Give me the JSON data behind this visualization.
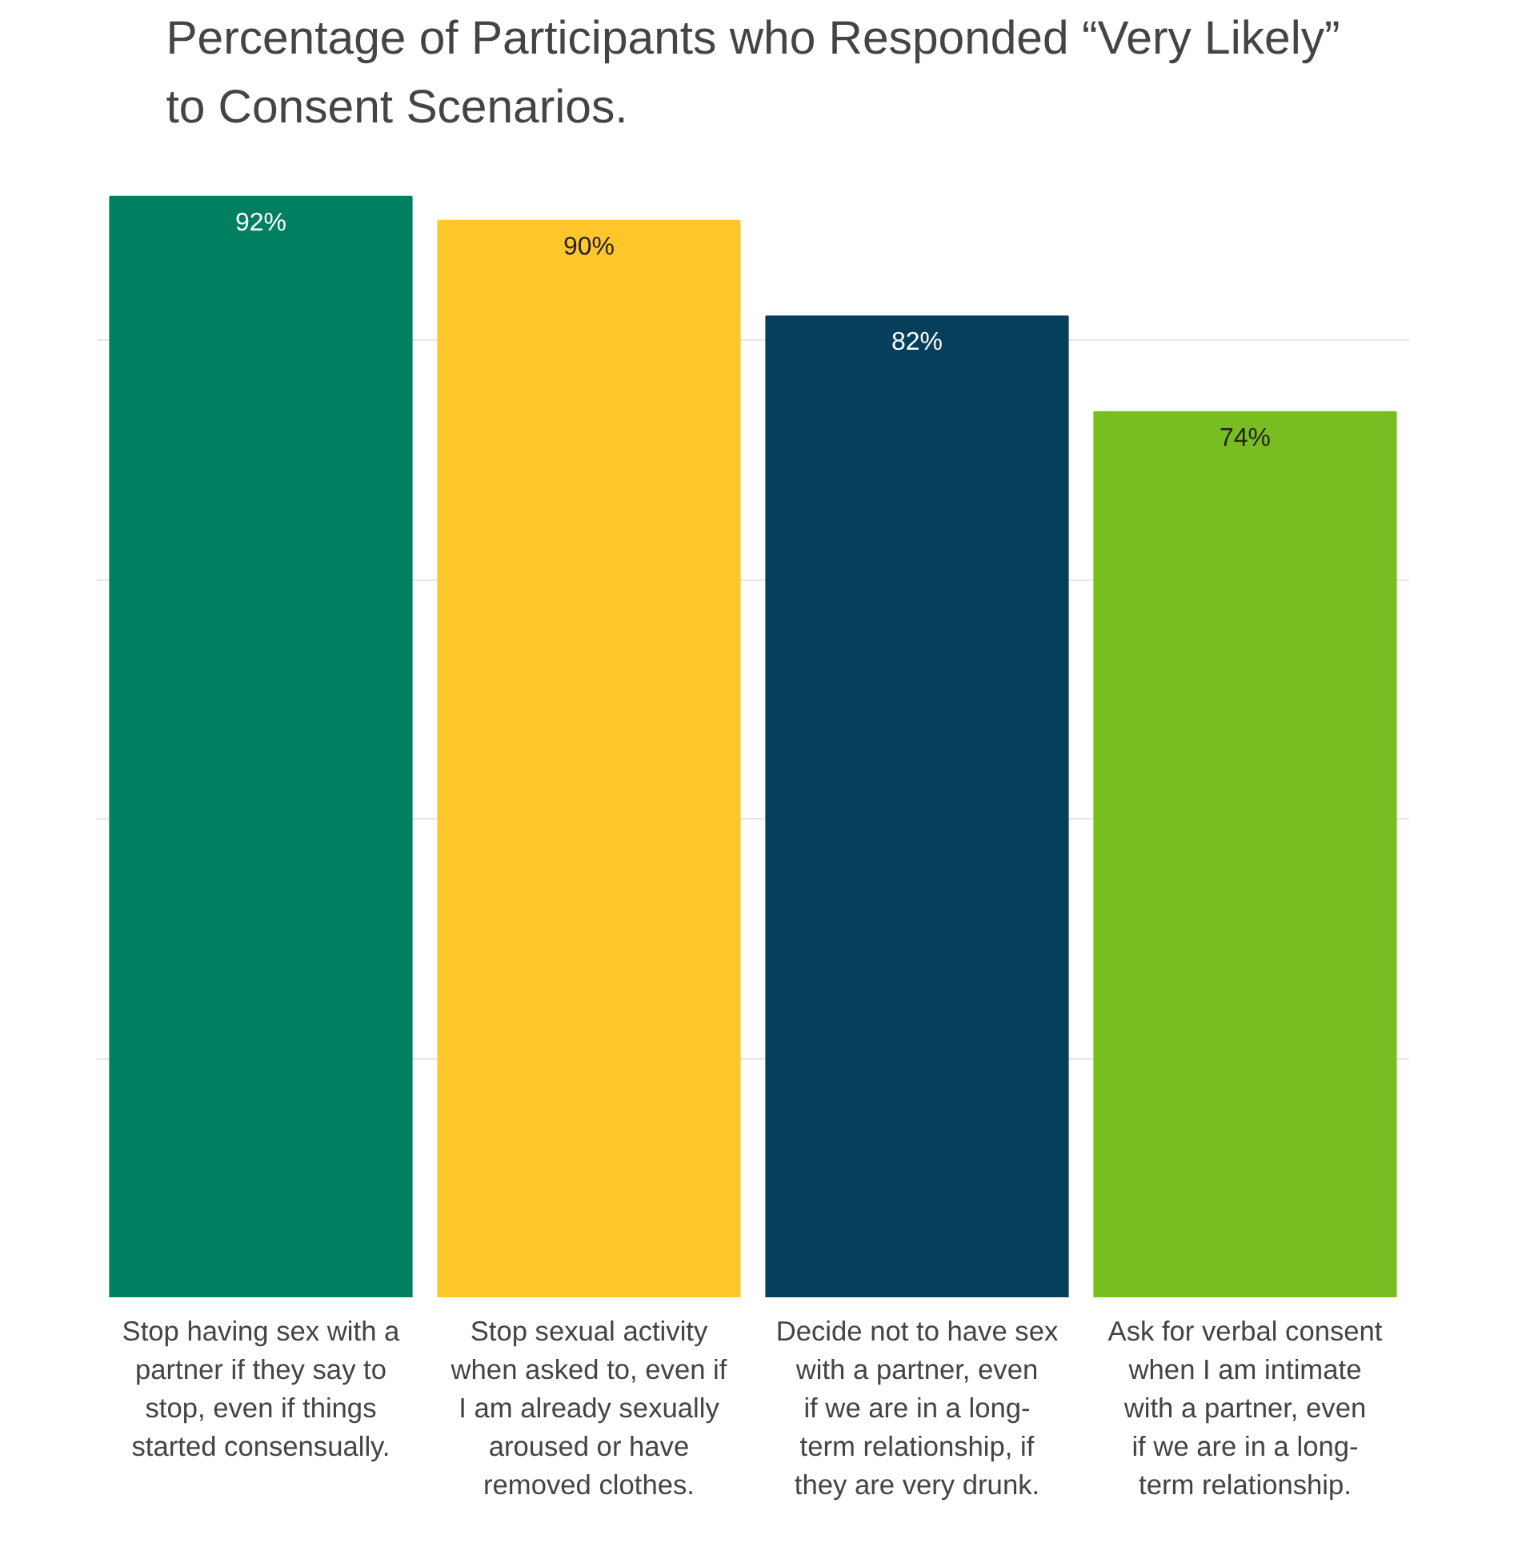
{
  "chart_data": {
    "type": "bar",
    "title": "Percentage of Participants who Responded “Very Likely”\nto Consent Scenarios.",
    "categories": [
      "Stop having sex with a partner if they say to stop, even if things started consensually.",
      "Stop sexual activity when asked to, even if I am already sexually aroused or have removed clothes.",
      "Decide not to have sex with a partner, even if we are in a long-term relationship, if they are very drunk.",
      "Ask for verbal consent when I am intimate with a partner, even if we are in a long-term relationship."
    ],
    "values": [
      92,
      90,
      82,
      74
    ],
    "colors": [
      "#008060",
      "#ffc72c",
      "#063f5c",
      "#78be20"
    ],
    "value_labels": [
      "92%",
      "90%",
      "82%",
      "74%"
    ],
    "grid": "y",
    "tick_labels": "x"
  }
}
